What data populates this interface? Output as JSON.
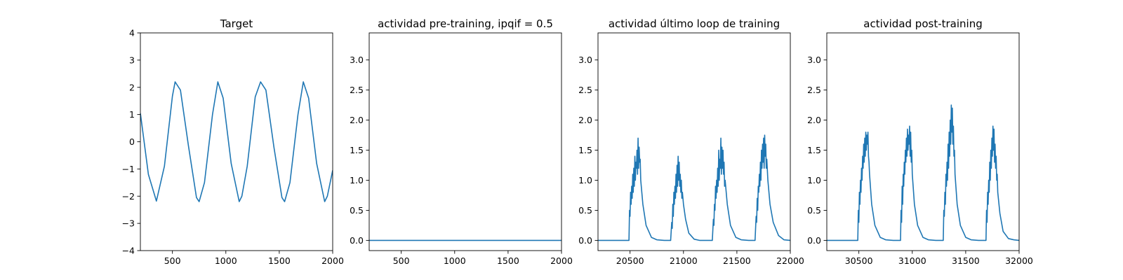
{
  "chart_data": [
    {
      "type": "line",
      "title": "Target",
      "xlabel": "",
      "ylabel": "",
      "xlim": [
        200,
        2000
      ],
      "ylim": [
        -4,
        4
      ],
      "xticks": [
        500,
        1000,
        1500,
        2000
      ],
      "yticks": [
        -4,
        -3,
        -2,
        -1,
        0,
        1,
        2,
        3,
        4
      ],
      "color": "#1f77b4",
      "grid": false,
      "legend": "none",
      "series": [
        {
          "x": [
            200,
            275,
            350,
            425,
            500,
            525,
            575,
            650,
            725,
            750,
            800,
            875,
            925,
            975,
            1050,
            1125,
            1150,
            1200,
            1275,
            1325,
            1375,
            1450,
            1525,
            1550,
            1600,
            1675,
            1725,
            1775,
            1850,
            1925,
            1950,
            2000
          ],
          "y": [
            1.05,
            -1.2,
            -2.18,
            -0.9,
            1.68,
            2.2,
            1.9,
            -0.15,
            -2.05,
            -2.2,
            -1.5,
            1.0,
            2.2,
            1.6,
            -0.8,
            -2.2,
            -2.0,
            -0.9,
            1.65,
            2.2,
            1.9,
            -0.2,
            -2.05,
            -2.2,
            -1.5,
            1.0,
            2.2,
            1.6,
            -0.8,
            -2.2,
            -2.0,
            -1.05
          ]
        }
      ]
    },
    {
      "type": "line",
      "title": "actividad pre-training, ipqif = 0.5",
      "xlabel": "",
      "ylabel": "",
      "xlim": [
        200,
        2000
      ],
      "ylim": [
        -0.17,
        3.45
      ],
      "xticks": [
        500,
        1000,
        1500,
        2000
      ],
      "yticks": [
        0.0,
        0.5,
        1.0,
        1.5,
        2.0,
        2.5,
        3.0
      ],
      "color": "#1f77b4",
      "grid": false,
      "legend": "none",
      "series": [
        {
          "x": [
            200,
            2000
          ],
          "y": [
            0,
            0
          ]
        }
      ]
    },
    {
      "type": "line",
      "title": "actividad último loop de training",
      "xlabel": "",
      "ylabel": "",
      "xlim": [
        20200,
        22000
      ],
      "ylim": [
        -0.17,
        3.45
      ],
      "xticks": [
        20500,
        21000,
        21500,
        22000
      ],
      "yticks": [
        0.0,
        0.5,
        1.0,
        1.5,
        2.0,
        2.5,
        3.0
      ],
      "color": "#1f77b4",
      "grid": false,
      "legend": "none",
      "series": [
        {
          "x": [
            20200,
            20490,
            20495,
            20500,
            20505,
            20510,
            20515,
            20520,
            20525,
            20530,
            20535,
            20540,
            20545,
            20550,
            20555,
            20560,
            20565,
            20570,
            20575,
            20580,
            20585,
            20590,
            20595,
            20600,
            20620,
            20650,
            20700,
            20750,
            20820,
            20880,
            20890,
            20895,
            20900,
            20905,
            20910,
            20915,
            20920,
            20925,
            20930,
            20935,
            20940,
            20945,
            20950,
            20955,
            20960,
            20965,
            20970,
            20975,
            20980,
            20985,
            20990,
            21000,
            21020,
            21050,
            21100,
            21150,
            21210,
            21270,
            21280,
            21285,
            21290,
            21295,
            21300,
            21305,
            21310,
            21315,
            21320,
            21325,
            21330,
            21335,
            21340,
            21345,
            21350,
            21355,
            21360,
            21365,
            21370,
            21375,
            21380,
            21385,
            21390,
            21410,
            21440,
            21490,
            21540,
            21610,
            21670,
            21680,
            21685,
            21690,
            21695,
            21700,
            21705,
            21710,
            21715,
            21720,
            21725,
            21730,
            21735,
            21740,
            21745,
            21750,
            21755,
            21760,
            21765,
            21770,
            21775,
            21780,
            21790,
            21810,
            21840,
            21890,
            21940,
            22000
          ],
          "y": [
            0,
            0,
            0.5,
            0.4,
            0.8,
            0.6,
            0.9,
            0.7,
            1.1,
            0.8,
            1.2,
            0.9,
            1.4,
            1.0,
            1.3,
            1.2,
            1.5,
            1.1,
            1.7,
            1.2,
            1.55,
            1.3,
            1.35,
            1.0,
            0.6,
            0.25,
            0.05,
            0.01,
            0,
            0,
            0.3,
            0.2,
            0.6,
            0.4,
            0.8,
            0.6,
            0.9,
            0.7,
            1.1,
            0.8,
            1.25,
            0.9,
            1.4,
            1.0,
            1.3,
            0.9,
            1.1,
            0.8,
            1.0,
            0.7,
            0.8,
            0.6,
            0.35,
            0.12,
            0.02,
            0,
            0,
            0,
            0.35,
            0.25,
            0.6,
            0.5,
            0.9,
            0.7,
            1.0,
            0.8,
            1.2,
            0.9,
            1.5,
            1.0,
            1.35,
            1.2,
            1.7,
            1.1,
            1.55,
            1.2,
            1.5,
            1.1,
            1.3,
            0.9,
            1.0,
            0.6,
            0.25,
            0.05,
            0.01,
            0,
            0,
            0.4,
            0.3,
            0.7,
            0.5,
            0.9,
            0.8,
            1.1,
            0.9,
            1.3,
            1.0,
            1.5,
            1.2,
            1.6,
            1.3,
            1.7,
            1.2,
            1.75,
            1.4,
            1.6,
            1.2,
            1.35,
            1.0,
            0.6,
            0.3,
            0.08,
            0.01,
            0
          ]
        }
      ]
    },
    {
      "type": "line",
      "title": "actividad post-training",
      "xlabel": "",
      "ylabel": "",
      "xlim": [
        30200,
        32000
      ],
      "ylim": [
        -0.17,
        3.45
      ],
      "xticks": [
        30500,
        31000,
        31500,
        32000
      ],
      "yticks": [
        0.0,
        0.5,
        1.0,
        1.5,
        2.0,
        2.5,
        3.0
      ],
      "color": "#1f77b4",
      "grid": false,
      "legend": "none",
      "series": [
        {
          "x": [
            30200,
            30490,
            30495,
            30500,
            30505,
            30510,
            30515,
            30520,
            30525,
            30530,
            30535,
            30540,
            30545,
            30550,
            30555,
            30560,
            30565,
            30570,
            30575,
            30580,
            30585,
            30590,
            30595,
            30600,
            30620,
            30650,
            30700,
            30750,
            30820,
            30890,
            30895,
            30900,
            30905,
            30910,
            30915,
            30920,
            30925,
            30930,
            30935,
            30940,
            30945,
            30950,
            30955,
            30960,
            30965,
            30970,
            30975,
            30980,
            30985,
            30990,
            30995,
            31000,
            31020,
            31050,
            31100,
            31150,
            31220,
            31290,
            31295,
            31300,
            31305,
            31310,
            31315,
            31320,
            31325,
            31330,
            31335,
            31340,
            31345,
            31350,
            31355,
            31360,
            31365,
            31370,
            31375,
            31380,
            31385,
            31390,
            31395,
            31400,
            31420,
            31450,
            31500,
            31550,
            31620,
            31690,
            31695,
            31700,
            31705,
            31710,
            31715,
            31720,
            31725,
            31730,
            31735,
            31740,
            31745,
            31750,
            31755,
            31760,
            31765,
            31770,
            31775,
            31780,
            31785,
            31790,
            31795,
            31800,
            31820,
            31850,
            31900,
            31950,
            32000
          ],
          "y": [
            0,
            0,
            0.5,
            0.3,
            0.8,
            0.6,
            1.0,
            0.8,
            1.2,
            1.0,
            1.4,
            1.2,
            1.6,
            1.3,
            1.7,
            1.4,
            1.8,
            1.5,
            1.75,
            1.6,
            1.8,
            1.4,
            1.3,
            1.1,
            0.6,
            0.25,
            0.05,
            0.01,
            0,
            0,
            0.5,
            0.3,
            0.9,
            0.6,
            1.1,
            0.9,
            1.3,
            1.1,
            1.5,
            1.3,
            1.7,
            1.4,
            1.85,
            1.5,
            1.75,
            1.6,
            1.9,
            1.4,
            1.8,
            1.3,
            1.5,
            1.1,
            0.6,
            0.25,
            0.05,
            0.01,
            0,
            0,
            0.5,
            0.4,
            0.8,
            0.6,
            1.1,
            0.9,
            1.3,
            1.0,
            1.6,
            1.2,
            1.8,
            1.4,
            2.0,
            1.6,
            2.25,
            1.8,
            2.2,
            1.6,
            1.9,
            1.4,
            1.5,
            1.1,
            0.6,
            0.25,
            0.05,
            0.01,
            0,
            0,
            0.5,
            0.3,
            0.8,
            0.6,
            1.0,
            0.8,
            1.3,
            1.0,
            1.5,
            1.2,
            1.7,
            1.4,
            1.9,
            1.5,
            1.85,
            1.3,
            1.6,
            1.2,
            1.4,
            1.0,
            1.1,
            0.8,
            0.45,
            0.15,
            0.03,
            0.01,
            0
          ]
        }
      ]
    }
  ]
}
